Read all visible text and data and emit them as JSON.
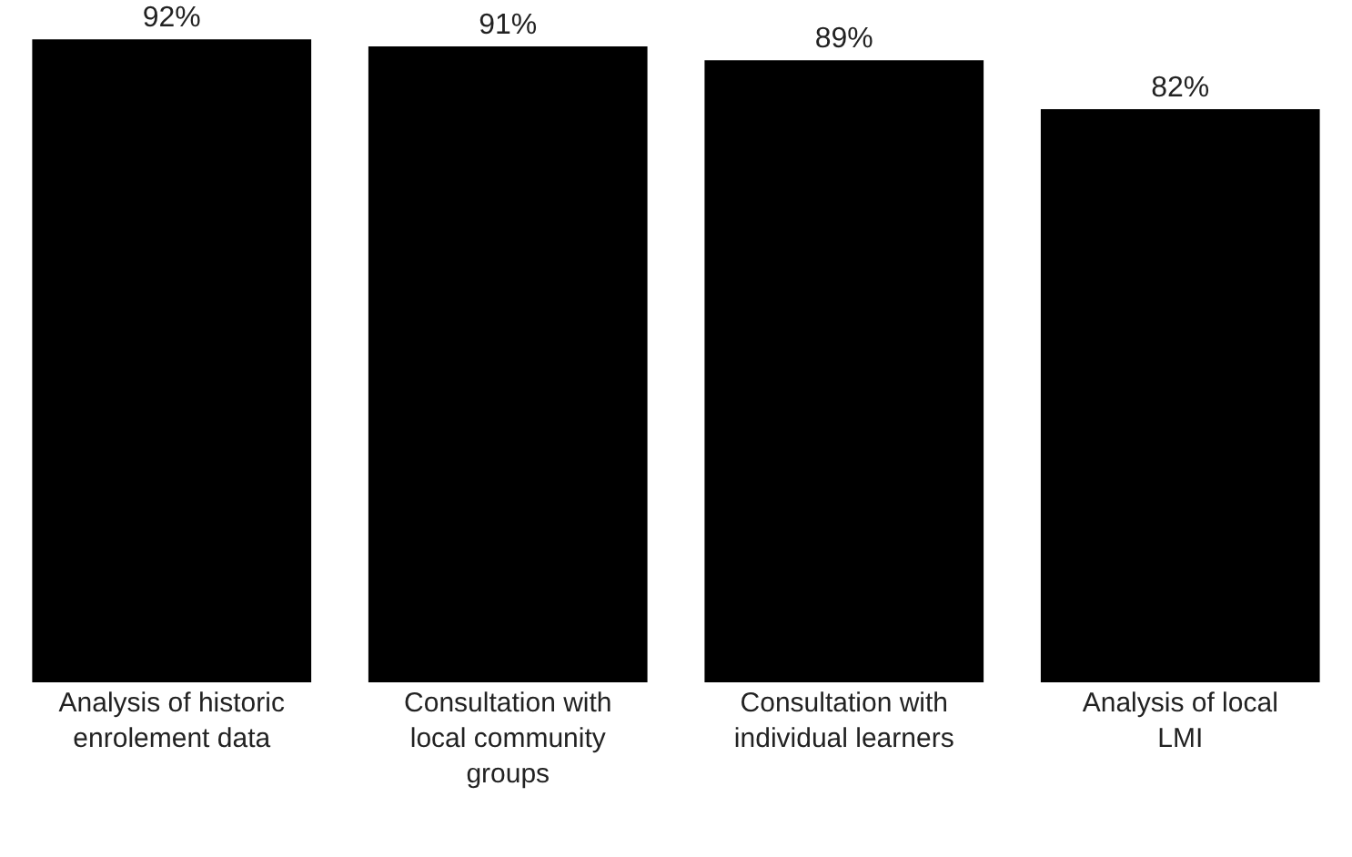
{
  "chart_data": {
    "type": "bar",
    "categories": [
      "Analysis of historic enrolement data",
      "Consultation with local community groups",
      "Consultation with individual learners",
      "Analysis of local LMI"
    ],
    "values": [
      92,
      91,
      89,
      82
    ],
    "value_labels": [
      "92%",
      "91%",
      "89%",
      "82%"
    ],
    "color": "#000000",
    "tick_labels": "x"
  }
}
